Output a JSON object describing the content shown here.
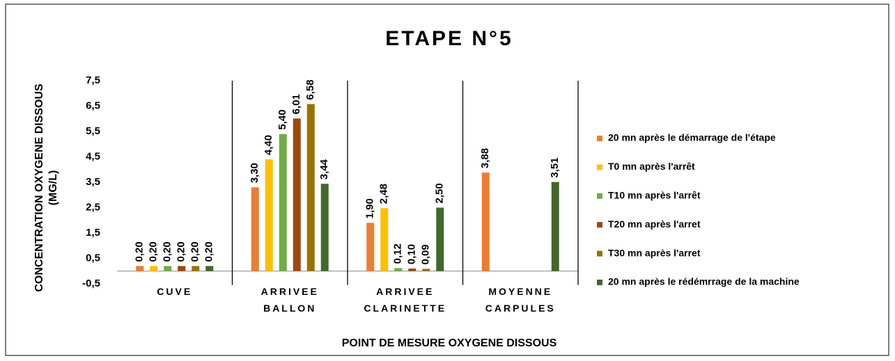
{
  "chart_data": {
    "type": "bar",
    "title": "ETAPE N°5",
    "x_label": "POINT DE MESURE OXYGENE DISSOUS",
    "y_label": "CONCENTRATION OXYGENE DISSOUS (MG/L)",
    "categories": [
      "CUVE",
      "ARRIVEE BALLON",
      "ARRIVEE CLARINETTE",
      "MOYENNE CARPULES"
    ],
    "series": [
      {
        "name": "20 mn après le démarrage de l'étape",
        "color": "#ed7d31",
        "values": [
          0.2,
          3.3,
          1.9,
          3.88
        ],
        "value_labels": [
          "0,20",
          "3,30",
          "1,90",
          "3,88"
        ]
      },
      {
        "name": "T0 mn après l'arrêt",
        "color": "#ffc000",
        "values": [
          0.2,
          4.4,
          2.48,
          null
        ],
        "value_labels": [
          "0,20",
          "4,40",
          "2,48",
          null
        ]
      },
      {
        "name": "T10 mn après l'arrêt",
        "color": "#70ad47",
        "values": [
          0.2,
          5.4,
          0.12,
          null
        ],
        "value_labels": [
          "0,20",
          "5,40",
          "0,12",
          null
        ]
      },
      {
        "name": "T20 mn après l'arret",
        "color": "#9e480e",
        "values": [
          0.2,
          6.01,
          0.1,
          null
        ],
        "value_labels": [
          "0,20",
          "6,01",
          "0,10",
          null
        ]
      },
      {
        "name": "T30 mn après l'arret",
        "color": "#997300",
        "values": [
          0.2,
          6.58,
          0.09,
          null
        ],
        "value_labels": [
          "0,20",
          "6,58",
          "0,09",
          null
        ]
      },
      {
        "name": "20 mn après le rédémrrage de la machine",
        "color": "#43682b",
        "values": [
          0.2,
          3.44,
          2.5,
          3.51
        ],
        "value_labels": [
          "0,20",
          "3,44",
          "2,50",
          "3,51"
        ]
      }
    ],
    "ylim": [
      -0.5,
      7.5
    ],
    "yticks": [
      {
        "value": -0.5,
        "label": "-0,5"
      },
      {
        "value": 0.5,
        "label": "0,5"
      },
      {
        "value": 1.5,
        "label": "1,5"
      },
      {
        "value": 2.5,
        "label": "2,5"
      },
      {
        "value": 3.5,
        "label": "3,5"
      },
      {
        "value": 4.5,
        "label": "4,5"
      },
      {
        "value": 5.5,
        "label": "5,5"
      },
      {
        "value": 6.5,
        "label": "6,5"
      },
      {
        "value": 7.5,
        "label": "7,5"
      }
    ],
    "legend": "right"
  }
}
